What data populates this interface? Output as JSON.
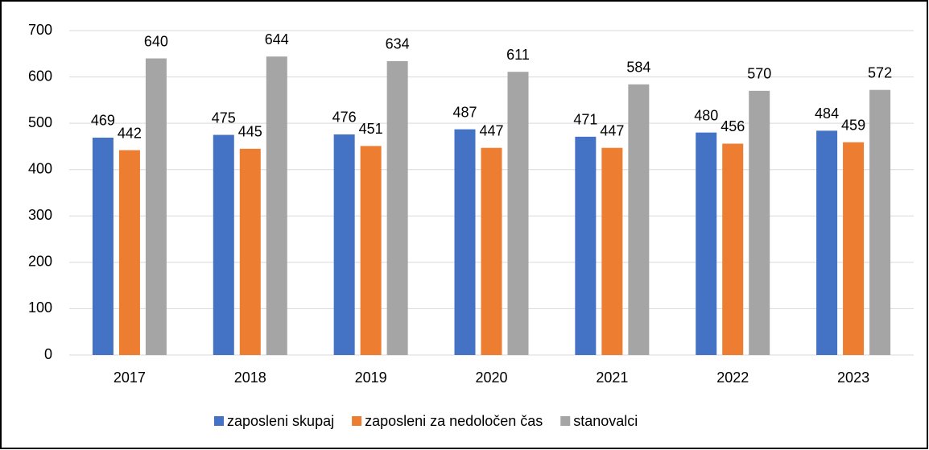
{
  "chart_data": {
    "type": "bar",
    "categories": [
      "2017",
      "2018",
      "2019",
      "2020",
      "2021",
      "2022",
      "2023"
    ],
    "series": [
      {
        "name": "zaposleni skupaj",
        "color": "#4472c4",
        "values": [
          469,
          475,
          476,
          487,
          471,
          480,
          484
        ]
      },
      {
        "name": "zaposleni za nedoločen čas",
        "color": "#ed7d31",
        "values": [
          442,
          445,
          451,
          447,
          447,
          456,
          459
        ]
      },
      {
        "name": "stanovalci",
        "color": "#a5a5a5",
        "values": [
          640,
          644,
          634,
          611,
          584,
          570,
          572
        ]
      }
    ],
    "ylim": [
      0,
      700
    ],
    "yticks": [
      0,
      100,
      200,
      300,
      400,
      500,
      600,
      700
    ],
    "grid": true,
    "legend": "bottom"
  }
}
